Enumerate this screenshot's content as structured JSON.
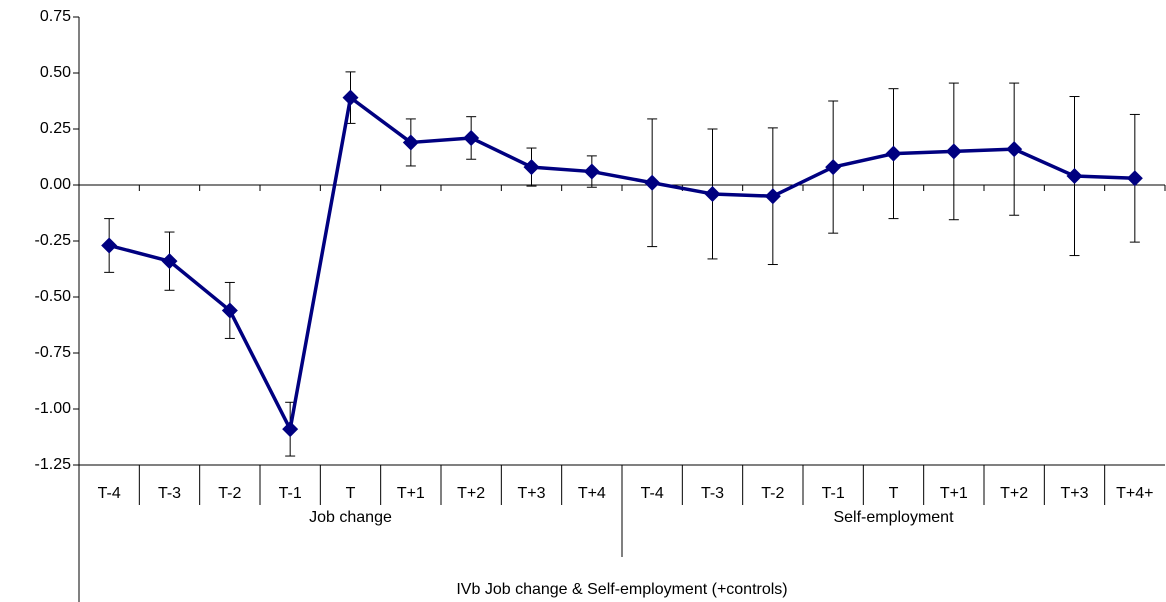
{
  "chart_data": {
    "type": "line",
    "category_groups": [
      {
        "name": "Job change",
        "categories": [
          "T-4",
          "T-3",
          "T-2",
          "T-1",
          "T",
          "T+1",
          "T+2",
          "T+3",
          "T+4"
        ]
      },
      {
        "name": "Self-employment",
        "categories": [
          "T-4",
          "T-3",
          "T-2",
          "T-1",
          "T",
          "T+1",
          "T+2",
          "T+3",
          "T+4+"
        ]
      }
    ],
    "x_group_title": "IVb Job change & Self-employment (+controls)",
    "series": [
      {
        "color": "#000080",
        "values": [
          -0.27,
          -0.34,
          -0.56,
          -1.09,
          0.39,
          0.19,
          0.21,
          0.08,
          0.06,
          0.01,
          -0.04,
          -0.05,
          0.08,
          0.14,
          0.15,
          0.16,
          0.04,
          0.03
        ],
        "errors": [
          0.12,
          0.13,
          0.125,
          0.12,
          0.115,
          0.105,
          0.095,
          0.085,
          0.07,
          0.285,
          0.29,
          0.305,
          0.295,
          0.29,
          0.305,
          0.295,
          0.355,
          0.285
        ]
      }
    ],
    "ylim": [
      -1.25,
      0.75
    ],
    "yticks": [
      0.75,
      {
        "value": 0.5,
        "label": "0.50"
      },
      0.25,
      {
        "value": 0,
        "label": "0.00"
      },
      -0.25,
      {
        "value": -0.5,
        "label": "-0.50"
      },
      -0.75,
      {
        "value": -1,
        "label": "-1.00"
      },
      -1.25
    ]
  }
}
